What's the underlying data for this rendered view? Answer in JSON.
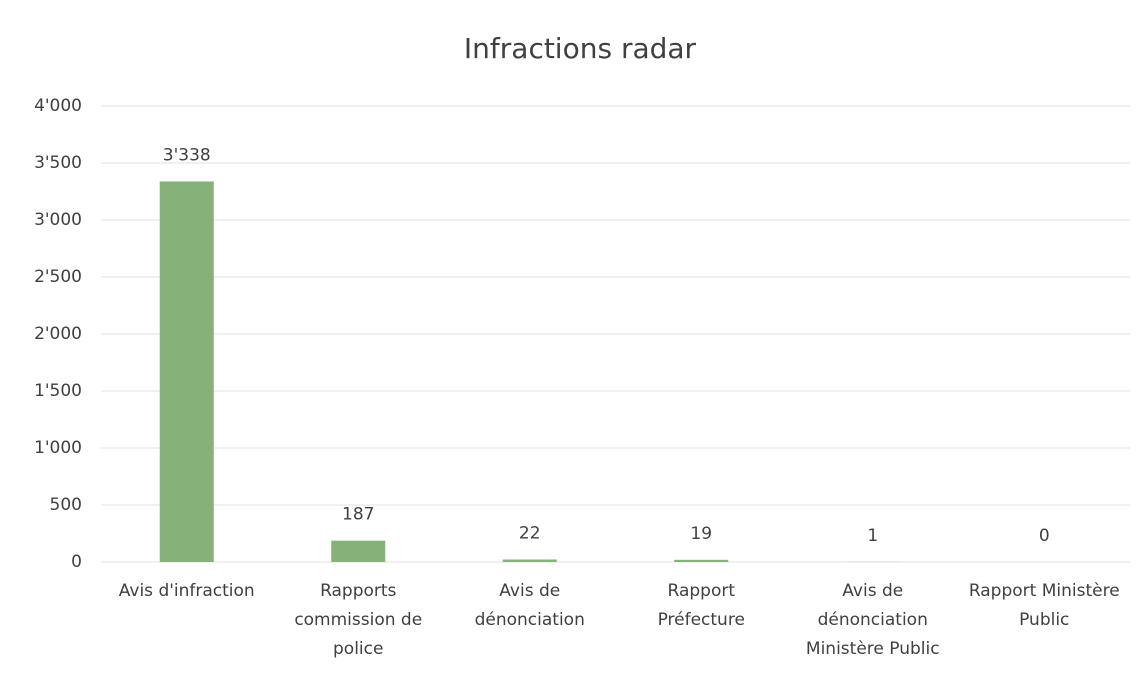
{
  "chart_data": {
    "type": "bar",
    "title": "Infractions radar",
    "categories": [
      "Avis d'infraction",
      "Rapports commission de police",
      "Avis de dénonciation",
      "Rapport Préfecture",
      "Avis de dénonciation Ministère Public",
      "Rapport Ministère Public"
    ],
    "values": [
      3338,
      187,
      22,
      19,
      1,
      0
    ],
    "value_labels": [
      "3'338",
      "187",
      "22",
      "19",
      "1",
      "0"
    ],
    "color": "#86b27a",
    "ylim": [
      0,
      4000
    ],
    "yticks": [
      0,
      500,
      {
        "value": 1000,
        "label": "1'000"
      },
      {
        "value": 1500,
        "label": "1'500"
      },
      {
        "value": 2000,
        "label": "2'000"
      },
      {
        "value": 2500,
        "label": "2'500"
      },
      {
        "value": 3000,
        "label": "3'000"
      },
      {
        "value": 3500,
        "label": "3'500"
      },
      {
        "value": 4000,
        "label": "4'000"
      }
    ],
    "grid": true
  }
}
